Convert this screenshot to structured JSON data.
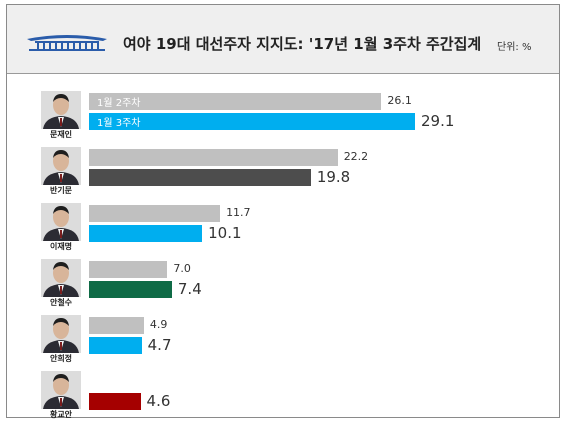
{
  "header": {
    "title": "여야 19대 대선주자 지지도: '17년 1월 3주차 주간집계",
    "unit": "단위: %"
  },
  "colors": {
    "prev": "#c0c0c0"
  },
  "chart_data": {
    "type": "bar",
    "orientation": "horizontal",
    "categories": [
      "문재인",
      "반기문",
      "이재명",
      "안철수",
      "안희정",
      "황교안"
    ],
    "series": [
      {
        "name": "1월 2주차",
        "values": [
          26.1,
          22.2,
          11.7,
          7.0,
          4.9,
          null
        ],
        "color": "#c0c0c0"
      },
      {
        "name": "1월 3주차",
        "values": [
          29.1,
          19.8,
          10.1,
          7.4,
          4.7,
          4.6
        ],
        "colors": [
          "#00aeef",
          "#4d4d4d",
          "#00aeef",
          "#0f6b46",
          "#00aeef",
          "#a50000"
        ]
      }
    ],
    "labels": {
      "prev": [
        "26.1",
        "22.2",
        "11.7",
        "7.0",
        "4.9",
        ""
      ],
      "curr": [
        "29.1",
        "19.8",
        "10.1",
        "7.4",
        "4.7",
        "4.6"
      ]
    },
    "xlim": [
      0,
      30
    ],
    "grid": false,
    "legend": "inline-on-first-bars"
  }
}
